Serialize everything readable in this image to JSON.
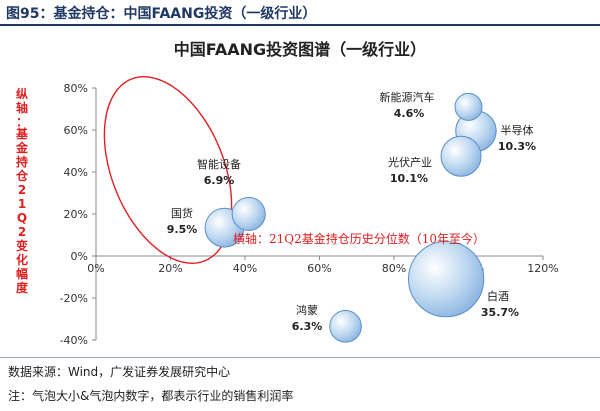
{
  "header": {
    "title": "图95：基金持仓：中国FAANG投资（一级行业）"
  },
  "chart_data": {
    "type": "scatter",
    "title": "中国FAANG投资图谱（一级行业）",
    "xlabel": "横轴：21Q2基金持仓历史分位数（10年至今）",
    "ylabel": "纵轴：基金持仓21Q2变化幅度",
    "xlim": [
      0,
      1.2
    ],
    "ylim": [
      -0.4,
      0.8
    ],
    "x_ticks": [
      "0%",
      "20%",
      "40%",
      "60%",
      "80%",
      "100%",
      "120%"
    ],
    "y_ticks": [
      "-40%",
      "-20%",
      "0%",
      "20%",
      "40%",
      "60%",
      "80%"
    ],
    "grid": false,
    "legend": "none",
    "points": [
      {
        "name": "新能源汽车",
        "x": 1.0,
        "y": 0.71,
        "bubble": 4.6,
        "label": "4.6%"
      },
      {
        "name": "半导体",
        "x": 1.02,
        "y": 0.595,
        "bubble": 10.3,
        "label": "10.3%"
      },
      {
        "name": "光伏产业",
        "x": 0.98,
        "y": 0.475,
        "bubble": 10.1,
        "label": "10.1%"
      },
      {
        "name": "智能设备",
        "x": 0.41,
        "y": 0.2,
        "bubble": 6.9,
        "label": "6.9%"
      },
      {
        "name": "国货",
        "x": 0.345,
        "y": 0.135,
        "bubble": 9.5,
        "label": "9.5%"
      },
      {
        "name": "白酒",
        "x": 0.94,
        "y": -0.11,
        "bubble": 35.7,
        "label": "35.7%"
      },
      {
        "name": "鸿蒙",
        "x": 0.67,
        "y": -0.335,
        "bubble": 6.3,
        "label": "6.3%"
      }
    ],
    "colors": {
      "bubble_fill": "#9dc3e6",
      "bubble_stroke": "#5b8fc7",
      "highlight": "#e02020",
      "axis": "#888888"
    }
  },
  "footer": {
    "source": "数据来源：Wind，广发证券发展研究中心",
    "note": "注：气泡大小&气泡内数字，都表示行业的销售利润率"
  }
}
